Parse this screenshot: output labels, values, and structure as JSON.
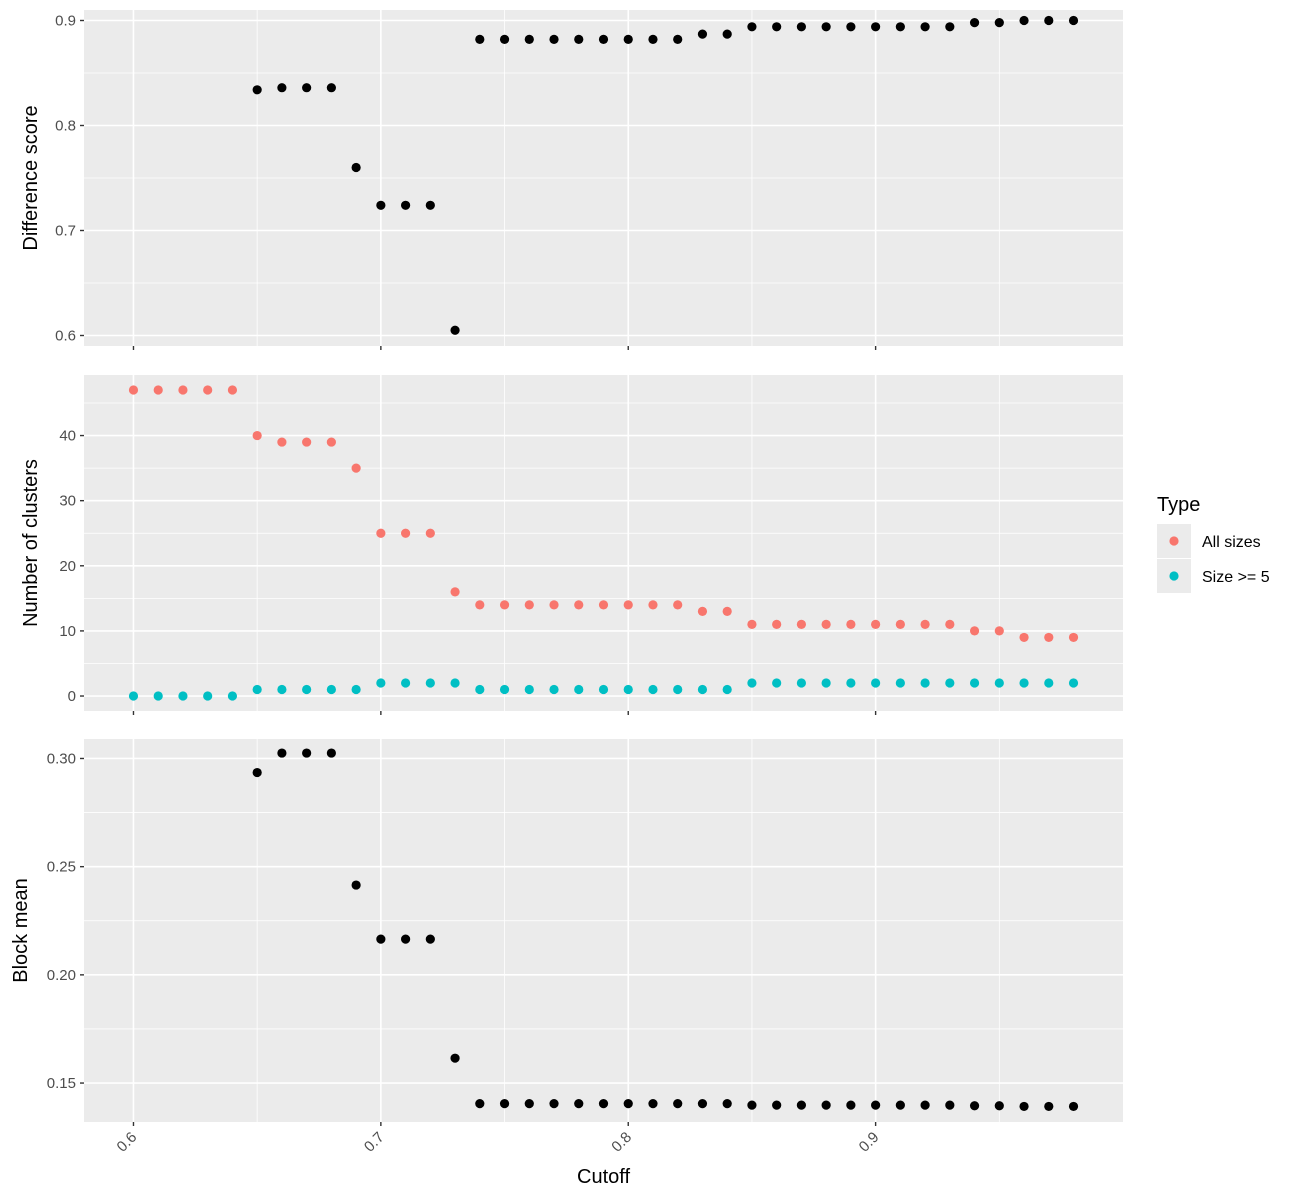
{
  "chart_data": [
    {
      "type": "scatter",
      "panel": "difference",
      "ylabel": "Difference score",
      "xlabel": "",
      "xlim": [
        0.58,
        1.0
      ],
      "ylim": [
        0.59,
        0.91
      ],
      "ymajor": [
        0.6,
        0.7,
        0.8,
        0.9
      ],
      "ytick_labels": [
        "0.6",
        "0.7",
        "0.8",
        "0.9"
      ],
      "point_color": "#000000",
      "points": [
        [
          0.65,
          0.834
        ],
        [
          0.66,
          0.836
        ],
        [
          0.67,
          0.836
        ],
        [
          0.68,
          0.836
        ],
        [
          0.69,
          0.76
        ],
        [
          0.7,
          0.724
        ],
        [
          0.71,
          0.724
        ],
        [
          0.72,
          0.724
        ],
        [
          0.73,
          0.605
        ],
        [
          0.74,
          0.882
        ],
        [
          0.75,
          0.882
        ],
        [
          0.76,
          0.882
        ],
        [
          0.77,
          0.882
        ],
        [
          0.78,
          0.882
        ],
        [
          0.79,
          0.882
        ],
        [
          0.8,
          0.882
        ],
        [
          0.81,
          0.882
        ],
        [
          0.82,
          0.882
        ],
        [
          0.83,
          0.887
        ],
        [
          0.84,
          0.887
        ],
        [
          0.85,
          0.894
        ],
        [
          0.86,
          0.894
        ],
        [
          0.87,
          0.894
        ],
        [
          0.88,
          0.894
        ],
        [
          0.89,
          0.894
        ],
        [
          0.9,
          0.894
        ],
        [
          0.91,
          0.894
        ],
        [
          0.92,
          0.894
        ],
        [
          0.93,
          0.894
        ],
        [
          0.94,
          0.898
        ],
        [
          0.95,
          0.898
        ],
        [
          0.96,
          0.9
        ],
        [
          0.97,
          0.9
        ],
        [
          0.98,
          0.9
        ]
      ]
    },
    {
      "type": "scatter",
      "panel": "clusters",
      "ylabel": "Number of clusters",
      "xlabel": "",
      "xlim": [
        0.58,
        1.0
      ],
      "ylim": [
        -2.3,
        49.3
      ],
      "ymajor": [
        0,
        10,
        20,
        30,
        40
      ],
      "ytick_labels": [
        "0",
        "10",
        "20",
        "30",
        "40"
      ],
      "legend": {
        "title": "Type",
        "placement": "right",
        "entries": [
          "All sizes",
          "Size >= 5"
        ]
      },
      "series": [
        {
          "name": "All sizes",
          "color": "#f8766d",
          "points": [
            [
              0.6,
              47
            ],
            [
              0.61,
              47
            ],
            [
              0.62,
              47
            ],
            [
              0.63,
              47
            ],
            [
              0.64,
              47
            ],
            [
              0.65,
              40
            ],
            [
              0.66,
              39
            ],
            [
              0.67,
              39
            ],
            [
              0.68,
              39
            ],
            [
              0.69,
              35
            ],
            [
              0.7,
              25
            ],
            [
              0.71,
              25
            ],
            [
              0.72,
              25
            ],
            [
              0.73,
              16
            ],
            [
              0.74,
              14
            ],
            [
              0.75,
              14
            ],
            [
              0.76,
              14
            ],
            [
              0.77,
              14
            ],
            [
              0.78,
              14
            ],
            [
              0.79,
              14
            ],
            [
              0.8,
              14
            ],
            [
              0.81,
              14
            ],
            [
              0.82,
              14
            ],
            [
              0.83,
              13
            ],
            [
              0.84,
              13
            ],
            [
              0.85,
              11
            ],
            [
              0.86,
              11
            ],
            [
              0.87,
              11
            ],
            [
              0.88,
              11
            ],
            [
              0.89,
              11
            ],
            [
              0.9,
              11
            ],
            [
              0.91,
              11
            ],
            [
              0.92,
              11
            ],
            [
              0.93,
              11
            ],
            [
              0.94,
              10
            ],
            [
              0.95,
              10
            ],
            [
              0.96,
              9
            ],
            [
              0.97,
              9
            ],
            [
              0.98,
              9
            ]
          ]
        },
        {
          "name": "Size >= 5",
          "color": "#00bfc4",
          "points": [
            [
              0.6,
              0
            ],
            [
              0.61,
              0
            ],
            [
              0.62,
              0
            ],
            [
              0.63,
              0
            ],
            [
              0.64,
              0
            ],
            [
              0.65,
              1
            ],
            [
              0.66,
              1
            ],
            [
              0.67,
              1
            ],
            [
              0.68,
              1
            ],
            [
              0.69,
              1
            ],
            [
              0.7,
              2
            ],
            [
              0.71,
              2
            ],
            [
              0.72,
              2
            ],
            [
              0.73,
              2
            ],
            [
              0.74,
              1
            ],
            [
              0.75,
              1
            ],
            [
              0.76,
              1
            ],
            [
              0.77,
              1
            ],
            [
              0.78,
              1
            ],
            [
              0.79,
              1
            ],
            [
              0.8,
              1
            ],
            [
              0.81,
              1
            ],
            [
              0.82,
              1
            ],
            [
              0.83,
              1
            ],
            [
              0.84,
              1
            ],
            [
              0.85,
              2
            ],
            [
              0.86,
              2
            ],
            [
              0.87,
              2
            ],
            [
              0.88,
              2
            ],
            [
              0.89,
              2
            ],
            [
              0.9,
              2
            ],
            [
              0.91,
              2
            ],
            [
              0.92,
              2
            ],
            [
              0.93,
              2
            ],
            [
              0.94,
              2
            ],
            [
              0.95,
              2
            ],
            [
              0.96,
              2
            ],
            [
              0.97,
              2
            ],
            [
              0.98,
              2
            ]
          ]
        }
      ]
    },
    {
      "type": "scatter",
      "panel": "block",
      "ylabel": "Block mean",
      "xlabel": "Cutoff",
      "xlim": [
        0.58,
        1.0
      ],
      "ylim": [
        0.132,
        0.309
      ],
      "ymajor": [
        0.15,
        0.2,
        0.25,
        0.3
      ],
      "ytick_labels": [
        "0.15",
        "0.20",
        "0.25",
        "0.30"
      ],
      "xmajor": [
        0.6,
        0.7,
        0.8,
        0.9
      ],
      "xtick_labels": [
        "0.6",
        "0.7",
        "0.8",
        "0.9"
      ],
      "point_color": "#000000",
      "points": [
        [
          0.65,
          0.2935
        ],
        [
          0.66,
          0.3025
        ],
        [
          0.67,
          0.3025
        ],
        [
          0.68,
          0.3025
        ],
        [
          0.69,
          0.2415
        ],
        [
          0.7,
          0.2165
        ],
        [
          0.71,
          0.2165
        ],
        [
          0.72,
          0.2165
        ],
        [
          0.73,
          0.1615
        ],
        [
          0.74,
          0.1405
        ],
        [
          0.75,
          0.1405
        ],
        [
          0.76,
          0.1405
        ],
        [
          0.77,
          0.1405
        ],
        [
          0.78,
          0.1405
        ],
        [
          0.79,
          0.1405
        ],
        [
          0.8,
          0.1405
        ],
        [
          0.81,
          0.1405
        ],
        [
          0.82,
          0.1405
        ],
        [
          0.83,
          0.1405
        ],
        [
          0.84,
          0.1405
        ],
        [
          0.85,
          0.1398
        ],
        [
          0.86,
          0.1398
        ],
        [
          0.87,
          0.1398
        ],
        [
          0.88,
          0.1398
        ],
        [
          0.89,
          0.1398
        ],
        [
          0.9,
          0.1398
        ],
        [
          0.91,
          0.1398
        ],
        [
          0.92,
          0.1398
        ],
        [
          0.93,
          0.1398
        ],
        [
          0.94,
          0.1395
        ],
        [
          0.95,
          0.1395
        ],
        [
          0.96,
          0.1392
        ],
        [
          0.97,
          0.1392
        ],
        [
          0.98,
          0.1392
        ]
      ]
    }
  ]
}
